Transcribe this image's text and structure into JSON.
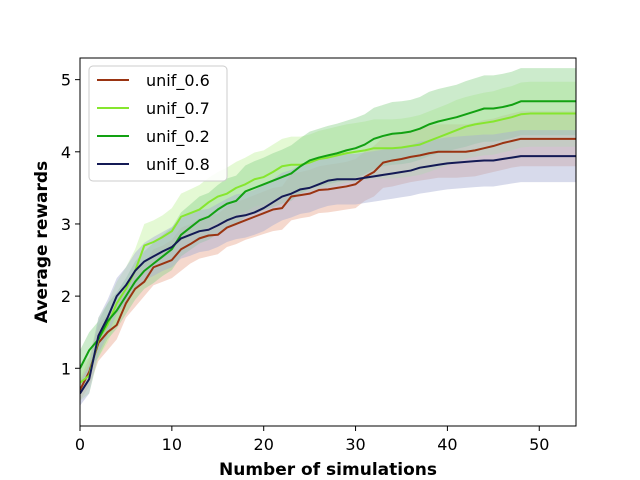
{
  "chart_data": {
    "type": "line",
    "title": "",
    "xlabel": "Number of simulations",
    "ylabel": "Average rewards",
    "xlim": [
      0,
      54
    ],
    "ylim": [
      0.2,
      5.3
    ],
    "xticks": [
      0,
      10,
      20,
      30,
      40,
      50
    ],
    "yticks": [
      1,
      2,
      3,
      4,
      5
    ],
    "grid": false,
    "legend_position": "top-left",
    "x": [
      0,
      1,
      2,
      3,
      4,
      5,
      6,
      7,
      8,
      9,
      10,
      11,
      12,
      13,
      14,
      15,
      16,
      17,
      18,
      19,
      20,
      21,
      22,
      23,
      24,
      25,
      26,
      27,
      28,
      29,
      30,
      31,
      32,
      33,
      34,
      35,
      36,
      37,
      38,
      39,
      40,
      41,
      42,
      43,
      44,
      45,
      46,
      47,
      48,
      49,
      50,
      51,
      52,
      53,
      54
    ],
    "series": [
      {
        "name": "unif_0.6",
        "color": "#9a3412",
        "band_color": "#e8a890",
        "values": [
          0.7,
          0.95,
          1.35,
          1.5,
          1.6,
          1.9,
          2.1,
          2.2,
          2.4,
          2.45,
          2.5,
          2.65,
          2.72,
          2.8,
          2.84,
          2.85,
          2.95,
          3.0,
          3.05,
          3.1,
          3.15,
          3.2,
          3.22,
          3.38,
          3.4,
          3.42,
          3.47,
          3.48,
          3.5,
          3.52,
          3.55,
          3.65,
          3.72,
          3.85,
          3.88,
          3.9,
          3.93,
          3.95,
          3.98,
          4.0,
          4.0,
          4.0,
          4.0,
          4.02,
          4.05,
          4.08,
          4.12,
          4.15,
          4.18,
          4.18,
          4.18,
          4.18,
          4.18,
          4.18,
          4.18
        ],
        "lower": [
          0.55,
          0.75,
          1.1,
          1.25,
          1.4,
          1.7,
          1.85,
          2.0,
          2.15,
          2.2,
          2.25,
          2.35,
          2.45,
          2.52,
          2.55,
          2.58,
          2.68,
          2.72,
          2.78,
          2.82,
          2.86,
          2.9,
          2.92,
          3.05,
          3.08,
          3.1,
          3.15,
          3.16,
          3.18,
          3.2,
          3.22,
          3.32,
          3.38,
          3.5,
          3.52,
          3.55,
          3.58,
          3.6,
          3.62,
          3.64,
          3.64,
          3.64,
          3.65,
          3.66,
          3.69,
          3.72,
          3.75,
          3.78,
          3.8,
          3.8,
          3.8,
          3.8,
          3.8,
          3.8,
          3.8
        ],
        "upper": [
          0.85,
          1.15,
          1.6,
          1.75,
          1.85,
          2.1,
          2.35,
          2.45,
          2.65,
          2.7,
          2.78,
          2.95,
          3.0,
          3.08,
          3.12,
          3.14,
          3.24,
          3.3,
          3.35,
          3.4,
          3.45,
          3.5,
          3.52,
          3.7,
          3.72,
          3.75,
          3.8,
          3.82,
          3.84,
          3.86,
          3.9,
          4.0,
          4.08,
          4.2,
          4.24,
          4.26,
          4.3,
          4.32,
          4.36,
          4.38,
          4.38,
          4.38,
          4.38,
          4.4,
          4.44,
          4.46,
          4.5,
          4.53,
          4.56,
          4.56,
          4.56,
          4.56,
          4.56,
          4.56,
          4.56
        ]
      },
      {
        "name": "unif_0.7",
        "color": "#86e62e",
        "band_color": "#c4f2a0",
        "values": [
          0.8,
          0.9,
          1.4,
          1.6,
          1.9,
          2.1,
          2.35,
          2.7,
          2.75,
          2.82,
          2.9,
          3.1,
          3.15,
          3.2,
          3.3,
          3.38,
          3.42,
          3.5,
          3.55,
          3.62,
          3.65,
          3.72,
          3.8,
          3.82,
          3.82,
          3.85,
          3.9,
          3.92,
          3.95,
          3.98,
          4.0,
          4.02,
          4.05,
          4.05,
          4.05,
          4.06,
          4.08,
          4.1,
          4.15,
          4.2,
          4.25,
          4.3,
          4.35,
          4.38,
          4.4,
          4.42,
          4.45,
          4.48,
          4.52,
          4.53,
          4.53,
          4.53,
          4.53,
          4.53,
          4.53
        ],
        "lower": [
          0.55,
          0.65,
          1.15,
          1.35,
          1.65,
          1.85,
          2.1,
          2.4,
          2.45,
          2.52,
          2.6,
          2.78,
          2.82,
          2.88,
          2.96,
          3.02,
          3.06,
          3.13,
          3.17,
          3.24,
          3.27,
          3.33,
          3.4,
          3.42,
          3.42,
          3.45,
          3.49,
          3.51,
          3.54,
          3.57,
          3.59,
          3.61,
          3.63,
          3.63,
          3.63,
          3.64,
          3.66,
          3.68,
          3.72,
          3.77,
          3.81,
          3.86,
          3.9,
          3.93,
          3.95,
          3.96,
          3.99,
          4.02,
          4.06,
          4.07,
          4.07,
          4.07,
          4.07,
          4.07,
          4.07
        ],
        "upper": [
          1.05,
          1.15,
          1.7,
          1.9,
          2.2,
          2.4,
          2.65,
          3.0,
          3.05,
          3.12,
          3.22,
          3.42,
          3.48,
          3.54,
          3.64,
          3.72,
          3.78,
          3.86,
          3.92,
          3.99,
          4.02,
          4.1,
          4.18,
          4.21,
          4.21,
          4.24,
          4.29,
          4.32,
          4.35,
          4.38,
          4.4,
          4.42,
          4.45,
          4.45,
          4.45,
          4.46,
          4.48,
          4.51,
          4.56,
          4.61,
          4.66,
          4.72,
          4.76,
          4.79,
          4.82,
          4.84,
          4.88,
          4.91,
          4.96,
          4.97,
          4.97,
          4.97,
          4.97,
          4.97,
          4.97
        ]
      },
      {
        "name": "unif_0.2",
        "color": "#12a112",
        "band_color": "#8fd38f",
        "values": [
          1.0,
          1.25,
          1.4,
          1.65,
          1.8,
          2.0,
          2.2,
          2.35,
          2.45,
          2.55,
          2.65,
          2.85,
          2.95,
          3.05,
          3.1,
          3.2,
          3.28,
          3.32,
          3.45,
          3.5,
          3.55,
          3.6,
          3.65,
          3.7,
          3.8,
          3.88,
          3.92,
          3.95,
          3.98,
          4.02,
          4.05,
          4.1,
          4.18,
          4.22,
          4.25,
          4.26,
          4.28,
          4.32,
          4.38,
          4.42,
          4.45,
          4.48,
          4.52,
          4.56,
          4.6,
          4.6,
          4.62,
          4.65,
          4.7,
          4.7,
          4.7,
          4.7,
          4.7,
          4.7,
          4.7
        ],
        "lower": [
          0.75,
          1.0,
          1.15,
          1.4,
          1.55,
          1.75,
          1.95,
          2.1,
          2.18,
          2.28,
          2.36,
          2.55,
          2.64,
          2.73,
          2.78,
          2.87,
          2.94,
          2.98,
          3.1,
          3.14,
          3.19,
          3.23,
          3.28,
          3.32,
          3.42,
          3.49,
          3.52,
          3.55,
          3.58,
          3.61,
          3.64,
          3.69,
          3.76,
          3.8,
          3.82,
          3.83,
          3.85,
          3.89,
          3.94,
          3.98,
          4.01,
          4.04,
          4.07,
          4.11,
          4.14,
          4.14,
          4.16,
          4.19,
          4.23,
          4.23,
          4.23,
          4.23,
          4.23,
          4.23,
          4.23
        ],
        "upper": [
          1.25,
          1.5,
          1.65,
          1.9,
          2.05,
          2.25,
          2.48,
          2.62,
          2.74,
          2.85,
          2.95,
          3.16,
          3.27,
          3.38,
          3.43,
          3.54,
          3.63,
          3.67,
          3.81,
          3.87,
          3.92,
          3.98,
          4.03,
          4.09,
          4.19,
          4.28,
          4.32,
          4.36,
          4.39,
          4.43,
          4.47,
          4.52,
          4.61,
          4.65,
          4.69,
          4.7,
          4.72,
          4.76,
          4.83,
          4.87,
          4.9,
          4.93,
          4.98,
          5.02,
          5.06,
          5.06,
          5.08,
          5.11,
          5.16,
          5.16,
          5.16,
          5.16,
          5.16,
          5.16,
          5.16
        ]
      },
      {
        "name": "unif_0.8",
        "color": "#141a55",
        "band_color": "#a6aed2",
        "values": [
          0.65,
          0.85,
          1.45,
          1.7,
          2.0,
          2.15,
          2.35,
          2.48,
          2.55,
          2.62,
          2.68,
          2.8,
          2.85,
          2.9,
          2.92,
          2.98,
          3.05,
          3.1,
          3.12,
          3.16,
          3.22,
          3.3,
          3.38,
          3.42,
          3.48,
          3.5,
          3.55,
          3.6,
          3.62,
          3.62,
          3.62,
          3.64,
          3.66,
          3.68,
          3.7,
          3.72,
          3.74,
          3.78,
          3.8,
          3.82,
          3.84,
          3.85,
          3.86,
          3.87,
          3.88,
          3.88,
          3.9,
          3.92,
          3.94,
          3.94,
          3.94,
          3.94,
          3.94,
          3.94,
          3.94
        ],
        "lower": [
          0.48,
          0.65,
          1.2,
          1.45,
          1.75,
          1.9,
          2.1,
          2.22,
          2.28,
          2.35,
          2.4,
          2.52,
          2.56,
          2.61,
          2.63,
          2.68,
          2.75,
          2.79,
          2.81,
          2.85,
          2.9,
          2.98,
          3.05,
          3.09,
          3.14,
          3.16,
          3.21,
          3.25,
          3.27,
          3.27,
          3.27,
          3.29,
          3.31,
          3.33,
          3.35,
          3.37,
          3.39,
          3.42,
          3.44,
          3.46,
          3.48,
          3.49,
          3.5,
          3.51,
          3.52,
          3.52,
          3.54,
          3.56,
          3.58,
          3.58,
          3.58,
          3.58,
          3.58,
          3.58,
          3.58
        ],
        "upper": [
          0.82,
          1.05,
          1.7,
          1.95,
          2.25,
          2.4,
          2.6,
          2.74,
          2.82,
          2.89,
          2.96,
          3.08,
          3.14,
          3.19,
          3.21,
          3.28,
          3.35,
          3.41,
          3.43,
          3.47,
          3.54,
          3.62,
          3.71,
          3.75,
          3.82,
          3.84,
          3.89,
          3.95,
          3.97,
          3.97,
          3.97,
          3.99,
          4.01,
          4.03,
          4.05,
          4.07,
          4.09,
          4.14,
          4.16,
          4.18,
          4.2,
          4.21,
          4.22,
          4.23,
          4.24,
          4.24,
          4.26,
          4.28,
          4.3,
          4.3,
          4.3,
          4.3,
          4.3,
          4.3,
          4.3
        ]
      }
    ]
  }
}
